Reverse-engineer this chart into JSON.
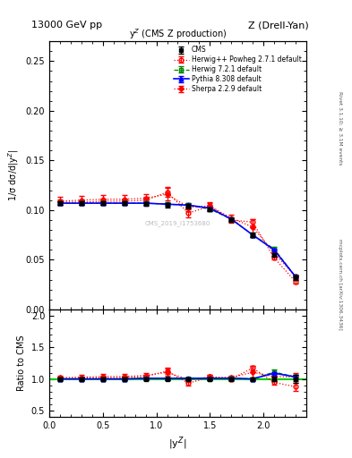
{
  "title_top": "13000 GeV pp",
  "title_right": "Z (Drell-Yan)",
  "plot_title": "y$^{Z}$ (CMS Z production)",
  "xlabel": "|y$^{Z}$|",
  "ylabel_main": "1/σ dσ/d|y$^{Z}$|",
  "ylabel_ratio": "Ratio to CMS",
  "watermark": "CMS_2019_I1753680",
  "side_text": "Rivet 3.1.10; ≥ 3.1M events",
  "side_text2": "mcplots.cern.ch [arXiv:1306.3436]",
  "x": [
    0.1,
    0.3,
    0.5,
    0.7,
    0.9,
    1.1,
    1.3,
    1.5,
    1.7,
    1.9,
    2.1,
    2.3
  ],
  "cms_y": [
    0.107,
    0.107,
    0.107,
    0.107,
    0.106,
    0.105,
    0.104,
    0.101,
    0.09,
    0.075,
    0.055,
    0.032
  ],
  "cms_yerr": [
    0.002,
    0.002,
    0.002,
    0.002,
    0.002,
    0.002,
    0.002,
    0.002,
    0.002,
    0.002,
    0.002,
    0.002
  ],
  "herwig_pp_y": [
    0.108,
    0.108,
    0.109,
    0.109,
    0.11,
    0.118,
    0.097,
    0.104,
    0.09,
    0.088,
    0.052,
    0.028
  ],
  "herwig_pp_yerr": [
    0.003,
    0.003,
    0.003,
    0.003,
    0.003,
    0.005,
    0.004,
    0.003,
    0.003,
    0.003,
    0.002,
    0.002
  ],
  "herwig72_y": [
    0.107,
    0.107,
    0.107,
    0.107,
    0.107,
    0.106,
    0.105,
    0.101,
    0.091,
    0.075,
    0.061,
    0.033
  ],
  "herwig72_yerr": [
    0.002,
    0.002,
    0.002,
    0.002,
    0.002,
    0.002,
    0.002,
    0.002,
    0.002,
    0.002,
    0.002,
    0.001
  ],
  "pythia_y": [
    0.107,
    0.107,
    0.107,
    0.107,
    0.107,
    0.106,
    0.105,
    0.102,
    0.091,
    0.075,
    0.06,
    0.033
  ],
  "pythia_yerr": [
    0.001,
    0.001,
    0.001,
    0.001,
    0.001,
    0.001,
    0.001,
    0.001,
    0.001,
    0.001,
    0.001,
    0.001
  ],
  "sherpa_y": [
    0.109,
    0.11,
    0.111,
    0.111,
    0.112,
    0.116,
    0.103,
    0.104,
    0.092,
    0.083,
    0.057,
    0.033
  ],
  "sherpa_yerr": [
    0.004,
    0.004,
    0.004,
    0.004,
    0.004,
    0.006,
    0.004,
    0.004,
    0.003,
    0.008,
    0.003,
    0.002
  ],
  "xlim": [
    0.0,
    2.4
  ],
  "ylim_main": [
    0.0,
    0.27
  ],
  "ylim_ratio": [
    0.4,
    2.1
  ],
  "color_cms": "#000000",
  "color_herwig_pp": "#ff0000",
  "color_herwig72": "#008800",
  "color_pythia": "#0000ff",
  "color_sherpa": "#ff0000"
}
